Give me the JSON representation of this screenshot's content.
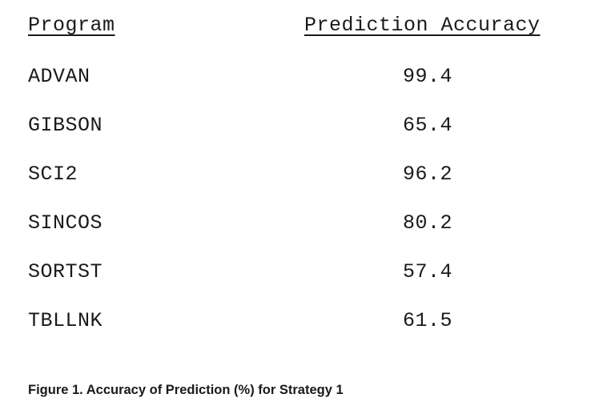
{
  "table": {
    "headers": {
      "program": "Program",
      "accuracy": "Prediction Accuracy"
    },
    "rows": [
      {
        "program": "ADVAN",
        "accuracy": "99.4"
      },
      {
        "program": "GIBSON",
        "accuracy": "65.4"
      },
      {
        "program": "SCI2",
        "accuracy": "96.2"
      },
      {
        "program": "SINCOS",
        "accuracy": "80.2"
      },
      {
        "program": "SORTST",
        "accuracy": "57.4"
      },
      {
        "program": "TBLLNK",
        "accuracy": "61.5"
      }
    ]
  },
  "caption": "Figure 1. Accuracy of Prediction (%) for Strategy 1"
}
